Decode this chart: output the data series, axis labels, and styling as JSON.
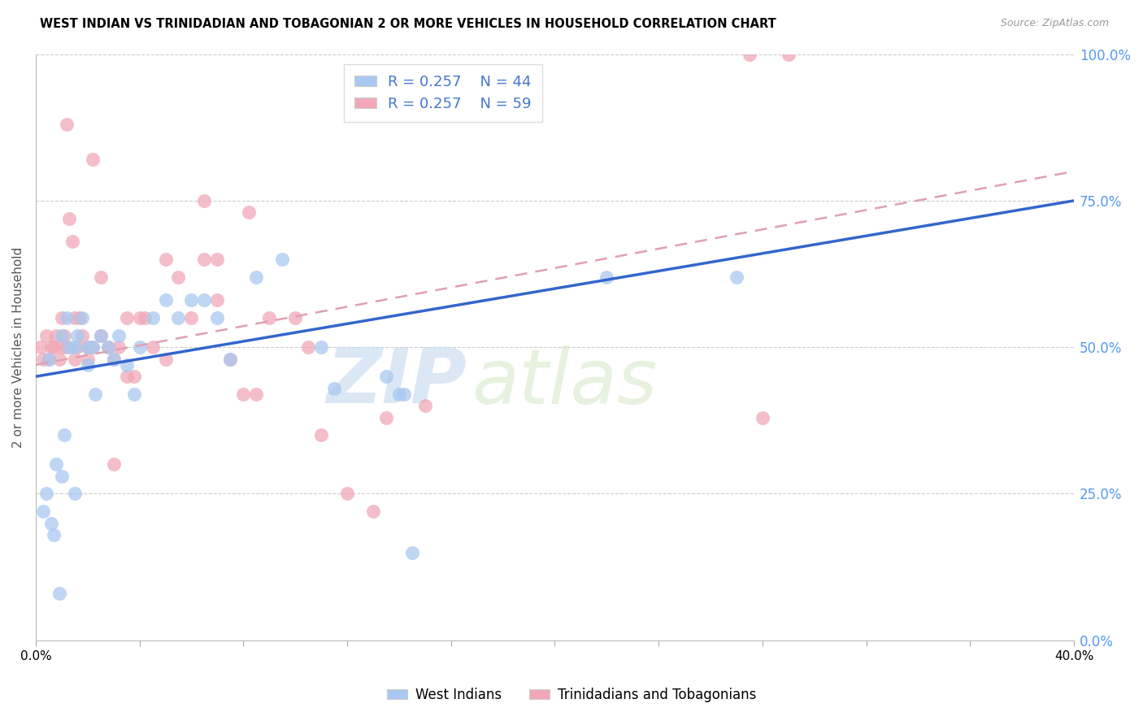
{
  "title": "WEST INDIAN VS TRINIDADIAN AND TOBAGONIAN 2 OR MORE VEHICLES IN HOUSEHOLD CORRELATION CHART",
  "source": "Source: ZipAtlas.com",
  "ylabel": "2 or more Vehicles in Household",
  "ytick_vals": [
    0,
    25,
    50,
    75,
    100
  ],
  "xlim": [
    0,
    40
  ],
  "ylim": [
    0,
    100
  ],
  "legend_blue_label": "West Indians",
  "legend_pink_label": "Trinidadians and Tobagonians",
  "blue_color": "#A8C8F0",
  "pink_color": "#F0A8B8",
  "blue_line_color": "#3366CC",
  "pink_line_color": "#DD6688",
  "pink_dash_color": "#E0A0B0",
  "watermark_zip": "ZIP",
  "watermark_atlas": "atlas",
  "blue_line_y0": 45,
  "blue_line_y1": 75,
  "pink_line_y0": 47,
  "pink_line_y1": 80,
  "blue_scatter_x": [
    0.3,
    0.5,
    0.6,
    0.8,
    1.0,
    1.0,
    1.2,
    1.3,
    1.5,
    1.5,
    1.8,
    2.0,
    2.0,
    2.2,
    2.5,
    2.8,
    3.0,
    3.2,
    3.5,
    4.0,
    4.5,
    5.0,
    6.0,
    7.0,
    7.5,
    8.5,
    9.5,
    11.0,
    13.5,
    14.0,
    14.5,
    22.0,
    27.0,
    0.4,
    0.7,
    1.1,
    1.6,
    2.3,
    3.8,
    5.5,
    11.5,
    14.2,
    0.9,
    6.5
  ],
  "blue_scatter_y": [
    22,
    48,
    20,
    30,
    52,
    28,
    55,
    50,
    50,
    25,
    55,
    50,
    47,
    50,
    52,
    50,
    48,
    52,
    47,
    50,
    55,
    58,
    58,
    55,
    48,
    62,
    65,
    50,
    45,
    42,
    15,
    62,
    62,
    25,
    18,
    35,
    52,
    42,
    42,
    55,
    43,
    42,
    8,
    58
  ],
  "pink_scatter_x": [
    0.2,
    0.3,
    0.4,
    0.5,
    0.6,
    0.7,
    0.8,
    0.9,
    1.0,
    1.0,
    1.1,
    1.2,
    1.3,
    1.4,
    1.5,
    1.5,
    1.6,
    1.7,
    1.8,
    2.0,
    2.0,
    2.2,
    2.5,
    2.8,
    3.0,
    3.2,
    3.5,
    3.8,
    4.0,
    4.5,
    5.0,
    5.5,
    6.0,
    6.5,
    7.0,
    7.5,
    8.0,
    8.5,
    9.0,
    10.0,
    11.0,
    12.0,
    13.0,
    15.0,
    2.5,
    3.5,
    5.0,
    7.0,
    10.5,
    13.5,
    4.2,
    3.0,
    1.2,
    2.2,
    6.5,
    8.2,
    28.0,
    27.5,
    29.0
  ],
  "pink_scatter_y": [
    50,
    48,
    52,
    48,
    50,
    50,
    52,
    48,
    55,
    50,
    52,
    50,
    72,
    68,
    55,
    48,
    50,
    55,
    52,
    50,
    48,
    50,
    52,
    50,
    48,
    50,
    45,
    45,
    55,
    50,
    48,
    62,
    55,
    65,
    58,
    48,
    42,
    42,
    55,
    55,
    35,
    25,
    22,
    40,
    62,
    55,
    65,
    65,
    50,
    38,
    55,
    30,
    88,
    82,
    75,
    73,
    38,
    100,
    100
  ]
}
